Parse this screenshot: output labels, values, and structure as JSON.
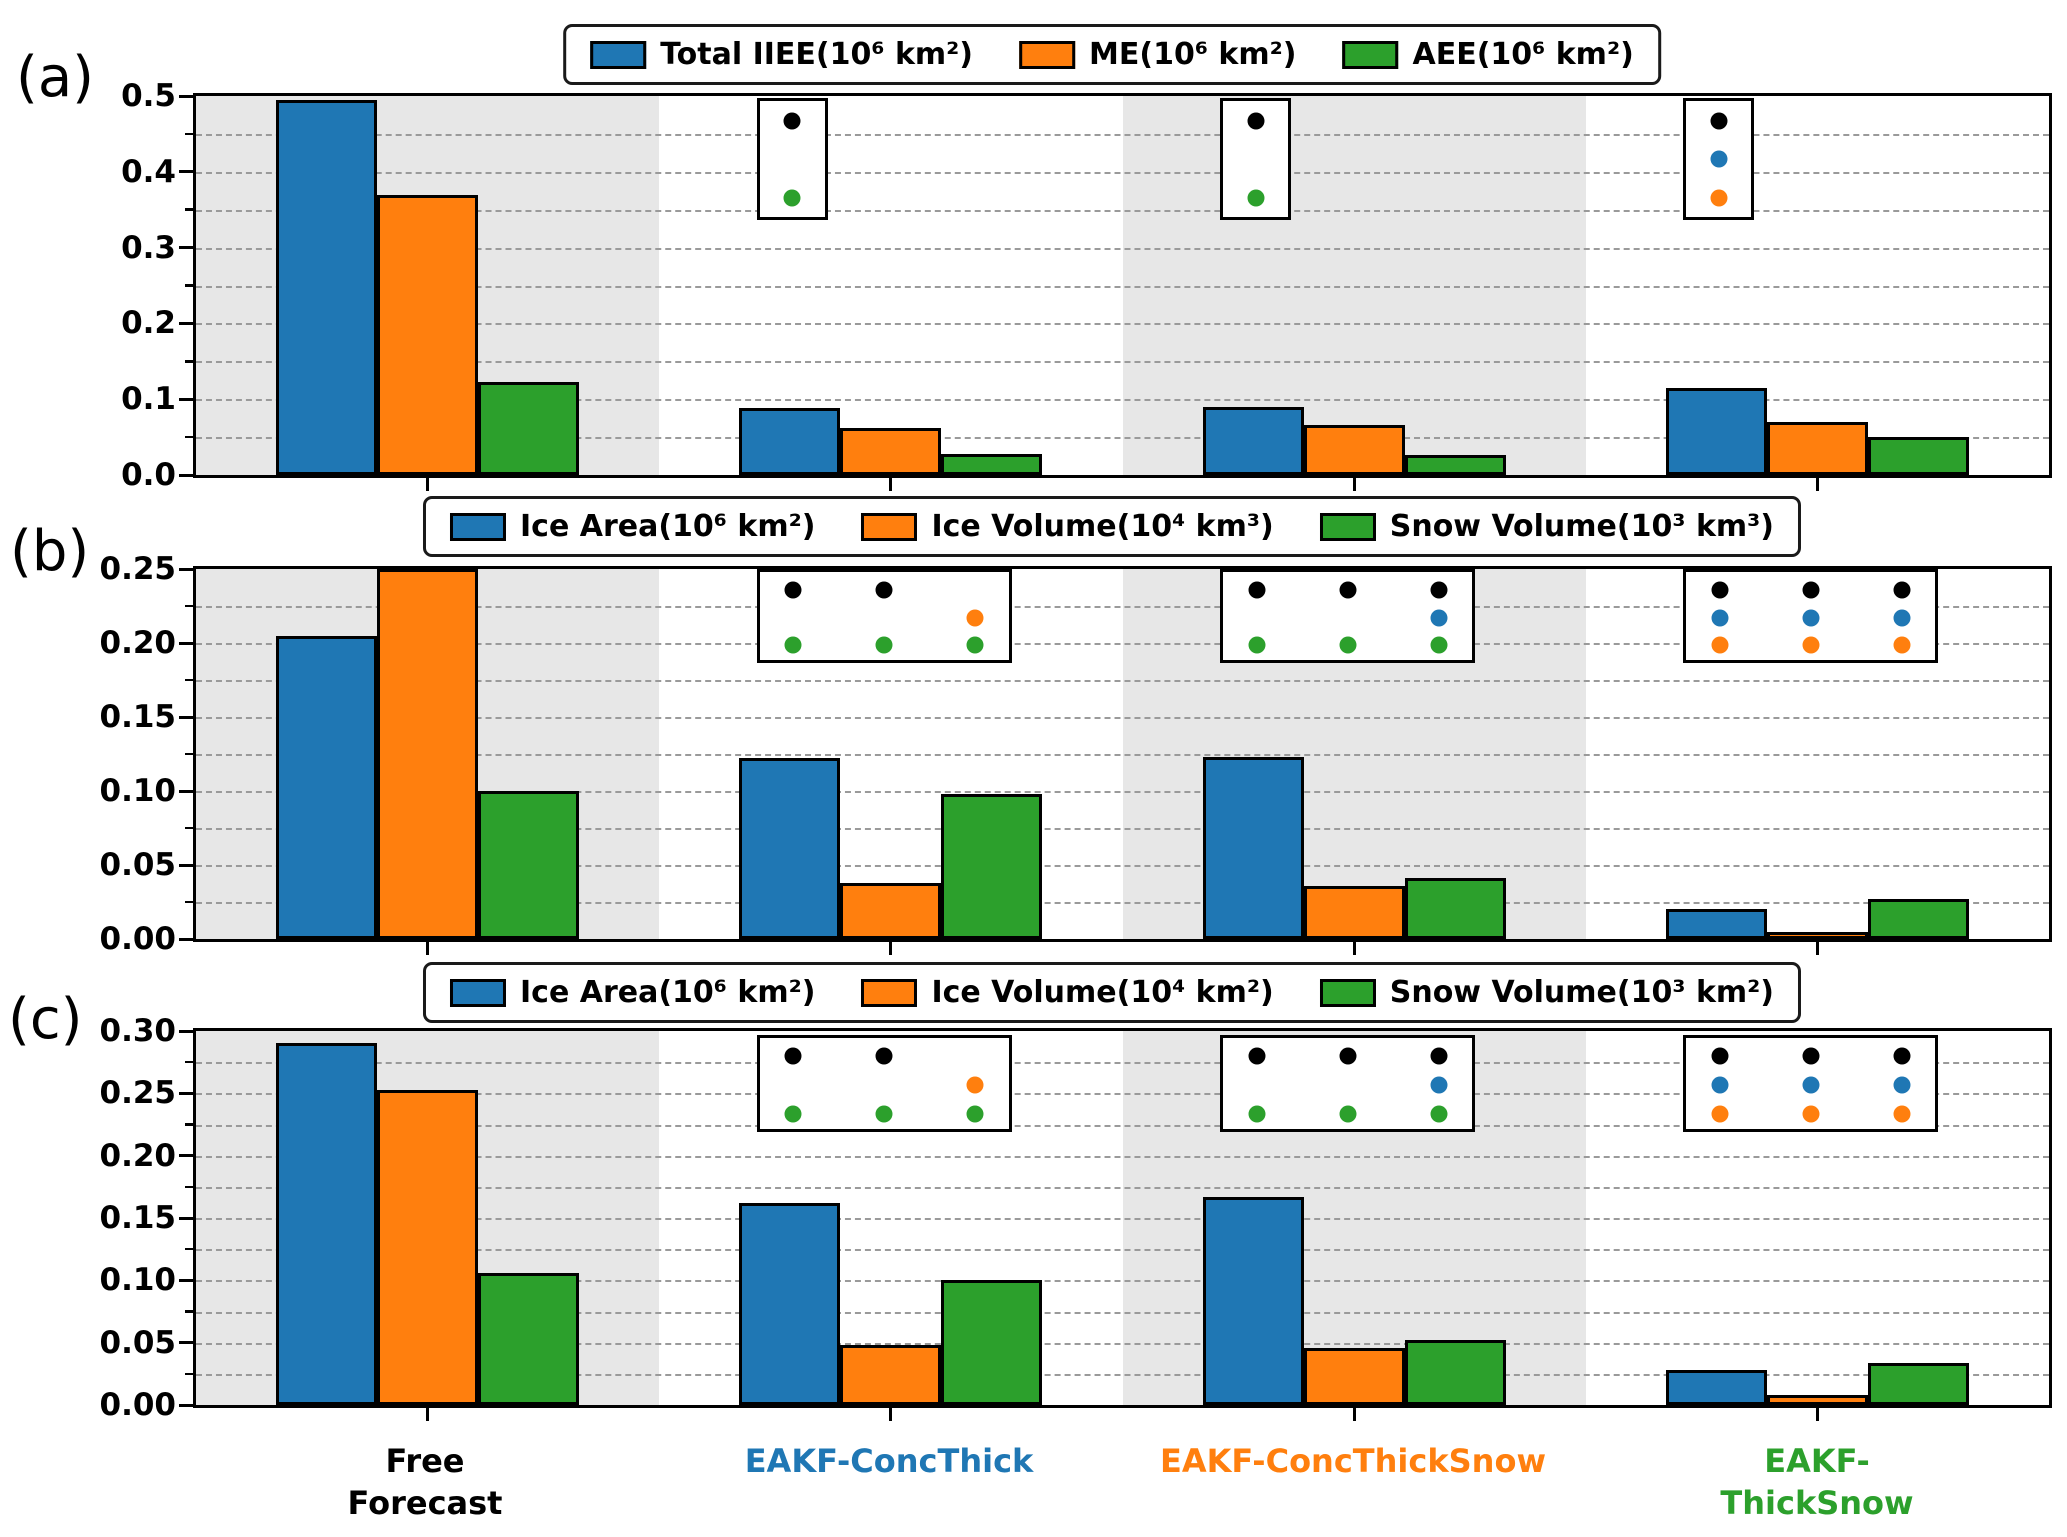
{
  "figure": {
    "panel_letters": [
      "(a)",
      "(b)",
      "(c)"
    ],
    "x_labels": [
      {
        "text": "Free\nForecast",
        "color": "#000000"
      },
      {
        "text": "EAKF-ConcThick",
        "color": "#1f77b4"
      },
      {
        "text": "EAKF-ConcThickSnow",
        "color": "#ff7f0e"
      },
      {
        "text": "EAKF-ThickSnow",
        "color": "#2ca02c"
      }
    ],
    "dot_colors": {
      "black": "#000000",
      "blue": "#1f77b4",
      "orange": "#ff7f0e",
      "green": "#2ca02c"
    },
    "band_color": "#e7e7e7",
    "series_colors": {
      "blue": "#1f77b4",
      "orange": "#ff7f0e",
      "green": "#2ca02c"
    }
  },
  "chart_data": [
    {
      "id": "a",
      "type": "bar",
      "title": "",
      "categories": [
        "Free Forecast",
        "EAKF-ConcThick",
        "EAKF-ConcThickSnow",
        "EAKF-ThickSnow"
      ],
      "legend": [
        {
          "label": "Total IIEE(10⁶ km²)",
          "color": "#1f77b4"
        },
        {
          "label": "ME(10⁶ km²)",
          "color": "#ff7f0e"
        },
        {
          "label": "AEE(10⁶ km²)",
          "color": "#2ca02c"
        }
      ],
      "series": [
        {
          "name": "Total IIEE(10⁶ km²)",
          "color": "#1f77b4",
          "values": [
            0.495,
            0.088,
            0.09,
            0.115
          ]
        },
        {
          "name": "ME(10⁶ km²)",
          "color": "#ff7f0e",
          "values": [
            0.37,
            0.062,
            0.066,
            0.07
          ]
        },
        {
          "name": "AEE(10⁶ km²)",
          "color": "#2ca02c",
          "values": [
            0.123,
            0.028,
            0.026,
            0.05
          ]
        }
      ],
      "ylim": [
        0,
        0.5
      ],
      "ytick_labels": [
        "0.5",
        "0.4",
        "0.3",
        "0.2",
        "0.1",
        "0.0"
      ],
      "ytick_step": 0.1,
      "minor_step": 0.05,
      "grid": "dashed, every 0.05",
      "legend_position": "top center",
      "insets": [
        {
          "group": 1,
          "dots": [
            [
              "black",
              null,
              "green"
            ]
          ]
        },
        {
          "group": 2,
          "dots": [
            [
              "black",
              null,
              "green"
            ]
          ]
        },
        {
          "group": 3,
          "dots": [
            [
              "black",
              "blue",
              "orange"
            ]
          ]
        }
      ]
    },
    {
      "id": "b",
      "type": "bar",
      "title": "",
      "categories": [
        "Free Forecast",
        "EAKF-ConcThick",
        "EAKF-ConcThickSnow",
        "EAKF-ThickSnow"
      ],
      "legend": [
        {
          "label": "Ice Area(10⁶ km²)",
          "color": "#1f77b4"
        },
        {
          "label": "Ice Volume(10⁴ km³)",
          "color": "#ff7f0e"
        },
        {
          "label": "Snow Volume(10³ km³)",
          "color": "#2ca02c"
        }
      ],
      "series": [
        {
          "name": "Ice Area(10⁶ km²)",
          "color": "#1f77b4",
          "values": [
            0.205,
            0.122,
            0.123,
            0.02
          ]
        },
        {
          "name": "Ice Volume(10⁴ km³)",
          "color": "#ff7f0e",
          "values": [
            0.25,
            0.038,
            0.036,
            0.005
          ]
        },
        {
          "name": "Snow Volume(10³ km³)",
          "color": "#2ca02c",
          "values": [
            0.1,
            0.098,
            0.041,
            0.027
          ]
        }
      ],
      "ylim": [
        0,
        0.25
      ],
      "ytick_labels": [
        "0.25",
        "0.20",
        "0.15",
        "0.10",
        "0.05",
        "0.00"
      ],
      "ytick_step": 0.05,
      "minor_step": 0.025,
      "grid": "dashed, every 0.025",
      "legend_position": "top center",
      "insets": [
        {
          "group": 1,
          "dots": [
            [
              "black",
              null,
              "green"
            ],
            [
              "black",
              null,
              "green"
            ],
            [
              null,
              "orange",
              "green"
            ]
          ]
        },
        {
          "group": 2,
          "dots": [
            [
              "black",
              null,
              "green"
            ],
            [
              "black",
              null,
              "green"
            ],
            [
              "black",
              "blue",
              "green"
            ]
          ]
        },
        {
          "group": 3,
          "dots": [
            [
              "black",
              "blue",
              "orange"
            ],
            [
              "black",
              "blue",
              "orange"
            ],
            [
              "black",
              "blue",
              "orange"
            ]
          ]
        }
      ]
    },
    {
      "id": "c",
      "type": "bar",
      "title": "",
      "categories": [
        "Free Forecast",
        "EAKF-ConcThick",
        "EAKF-ConcThickSnow",
        "EAKF-ThickSnow"
      ],
      "legend": [
        {
          "label": "Ice Area(10⁶ km²)",
          "color": "#1f77b4"
        },
        {
          "label": "Ice Volume(10⁴ km²)",
          "color": "#ff7f0e"
        },
        {
          "label": "Snow Volume(10³ km²)",
          "color": "#2ca02c"
        }
      ],
      "series": [
        {
          "name": "Ice Area(10⁶ km²)",
          "color": "#1f77b4",
          "values": [
            0.29,
            0.162,
            0.167,
            0.028
          ]
        },
        {
          "name": "Ice Volume(10⁴ km²)",
          "color": "#ff7f0e",
          "values": [
            0.253,
            0.048,
            0.046,
            0.008
          ]
        },
        {
          "name": "Snow Volume(10³ km²)",
          "color": "#2ca02c",
          "values": [
            0.106,
            0.1,
            0.052,
            0.034
          ]
        }
      ],
      "ylim": [
        0,
        0.3
      ],
      "ytick_labels": [
        "0.30",
        "0.25",
        "0.20",
        "0.15",
        "0.10",
        "0.05",
        "0.00"
      ],
      "ytick_step": 0.05,
      "minor_step": 0.025,
      "grid": "dashed, every 0.025",
      "legend_position": "top center",
      "insets": [
        {
          "group": 1,
          "dots": [
            [
              "black",
              null,
              "green"
            ],
            [
              "black",
              null,
              "green"
            ],
            [
              null,
              "orange",
              "green"
            ]
          ]
        },
        {
          "group": 2,
          "dots": [
            [
              "black",
              null,
              "green"
            ],
            [
              "black",
              null,
              "green"
            ],
            [
              "black",
              "blue",
              "green"
            ]
          ]
        },
        {
          "group": 3,
          "dots": [
            [
              "black",
              "blue",
              "orange"
            ],
            [
              "black",
              "blue",
              "orange"
            ],
            [
              "black",
              "blue",
              "orange"
            ]
          ]
        }
      ]
    }
  ]
}
